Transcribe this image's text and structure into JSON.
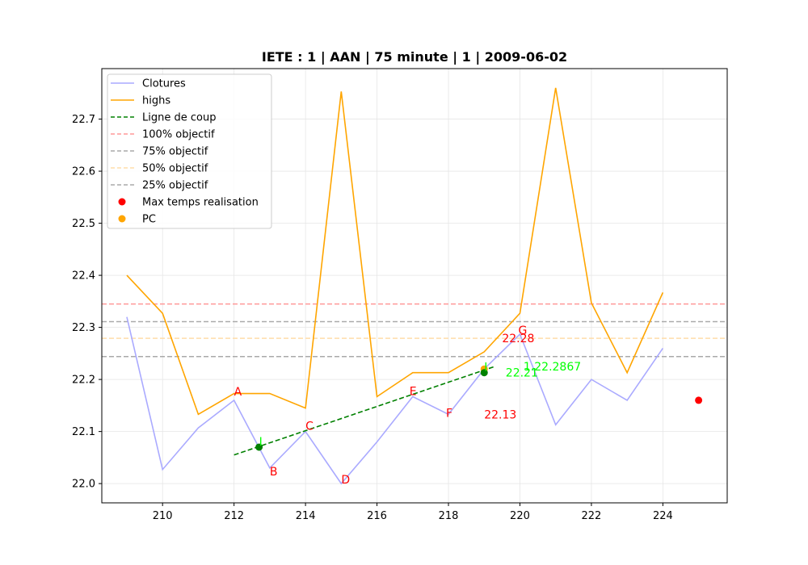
{
  "chart_data": {
    "type": "line",
    "title": "IETE : 1 | AAN | 75 minute | 1 | 2009-06-02",
    "xlabel": "",
    "ylabel": "",
    "xlim": [
      208.3,
      225.8
    ],
    "ylim": [
      21.963,
      22.797
    ],
    "xticks": [
      210,
      212,
      214,
      216,
      218,
      220,
      222,
      224
    ],
    "yticks": [
      22.0,
      22.1,
      22.2,
      22.3,
      22.4,
      22.5,
      22.6,
      22.7
    ],
    "grid": true,
    "legend_position": "top-left",
    "series": [
      {
        "name": "Clotures",
        "color": "#aaaaff",
        "x": [
          209,
          210,
          211,
          212,
          213,
          214,
          215,
          216,
          217,
          218,
          219,
          220,
          221,
          222,
          223,
          224
        ],
        "values": [
          22.32,
          22.027,
          22.107,
          22.16,
          22.03,
          22.1,
          22.0,
          22.08,
          22.167,
          22.133,
          22.22,
          22.287,
          22.113,
          22.2,
          22.16,
          22.26
        ]
      },
      {
        "name": "highs",
        "color": "#ffa500",
        "x": [
          209,
          210,
          211,
          212,
          213,
          214,
          215,
          216,
          217,
          218,
          219,
          220,
          221,
          222,
          223,
          224
        ],
        "values": [
          22.4,
          22.327,
          22.133,
          22.173,
          22.173,
          22.145,
          22.753,
          22.167,
          22.213,
          22.213,
          22.253,
          22.327,
          22.76,
          22.347,
          22.213,
          22.367
        ]
      }
    ],
    "trade_line": {
      "name": "Ligne de coup",
      "color": "#008000",
      "x": [
        212,
        219.3
      ],
      "values": [
        22.055,
        22.225
      ]
    },
    "hlines": [
      {
        "name": "100% objectif",
        "value": 22.345,
        "color": "#ff9999"
      },
      {
        "name": "75% objectif",
        "value": 22.311,
        "color": "#aaaaaa"
      },
      {
        "name": "50% objectif",
        "value": 22.279,
        "color": "#ffddaa"
      },
      {
        "name": "25% objectif",
        "value": 22.244,
        "color": "#aaaaaa"
      }
    ],
    "scatter": [
      {
        "name": "Max temps realisation",
        "color": "#ff0000",
        "points": [
          {
            "x": 225,
            "y": 22.16
          }
        ]
      },
      {
        "name": "PC",
        "color": "#ffa500",
        "points": [
          {
            "x": 219,
            "y": 22.22
          }
        ]
      }
    ],
    "green_points": [
      {
        "x": 212.7,
        "y": 22.07
      },
      {
        "x": 219.0,
        "y": 22.213
      }
    ],
    "point_labels": [
      {
        "text": "A",
        "x": 212,
        "y": 22.16,
        "color": "#ff0000"
      },
      {
        "text": "B",
        "x": 213,
        "y": 22.03,
        "color": "#ff0000"
      },
      {
        "text": "C",
        "x": 214,
        "y": 22.1,
        "color": "#ff0000"
      },
      {
        "text": "D",
        "x": 215,
        "y": 22.0,
        "color": "#ff0000"
      },
      {
        "text": "E",
        "x": 217,
        "y": 22.167,
        "color": "#ff0000"
      },
      {
        "text": "F",
        "x": 218,
        "y": 22.133,
        "color": "#ff0000"
      },
      {
        "text": "G",
        "x": 220,
        "y": 22.287,
        "color": "#ff0000"
      },
      {
        "text": "I",
        "x": 212.7,
        "y": 22.07,
        "color": "#00ff00"
      },
      {
        "text": "I",
        "x": 219.0,
        "y": 22.213,
        "color": "#00ff00"
      }
    ],
    "value_labels": [
      {
        "text": "22.28",
        "x": 219.5,
        "y": 22.279,
        "color": "#ff0000"
      },
      {
        "text": "22.13",
        "x": 219.0,
        "y": 22.133,
        "color": "#ff0000"
      },
      {
        "text": "22.21",
        "x": 219.6,
        "y": 22.213,
        "color": "#00ff00"
      },
      {
        "text": "1.22.2867",
        "x": 220.1,
        "y": 22.225,
        "color": "#00ff00"
      }
    ]
  }
}
